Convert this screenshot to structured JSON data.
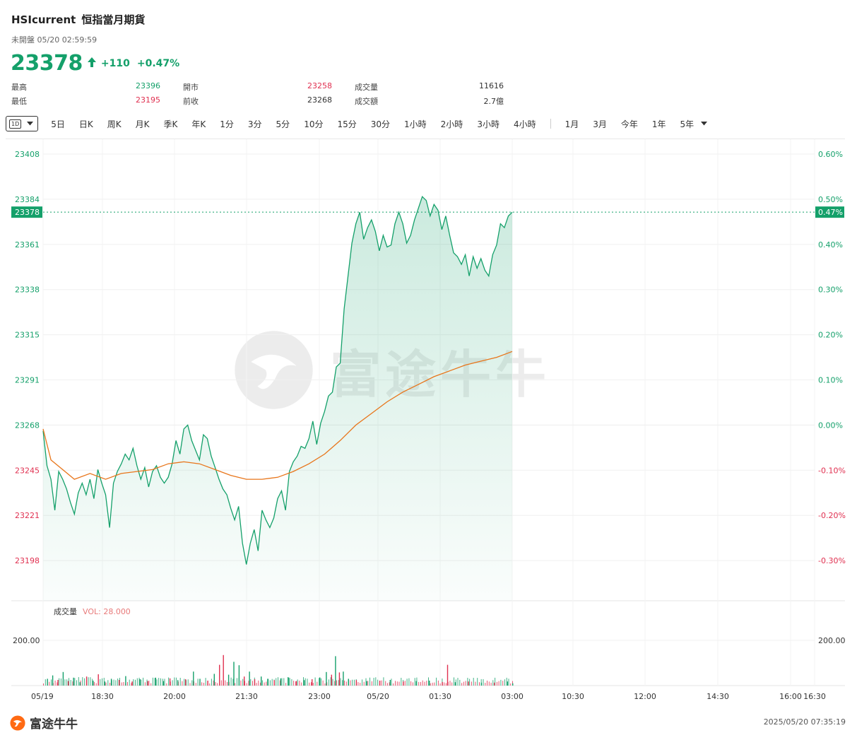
{
  "header": {
    "symbol": "HSIcurrent",
    "name": "恒指當月期貨",
    "status": "未開盤 05/20 02:59:59",
    "price": "23378",
    "change": "+110",
    "change_pct": "+0.47%"
  },
  "stats": [
    {
      "label": "最高",
      "value": "23396",
      "tone": "up"
    },
    {
      "label": "開市",
      "value": "23258",
      "tone": "dn"
    },
    {
      "label": "成交量",
      "value": "11616",
      "tone": "neu"
    },
    {
      "label": "最低",
      "value": "23195",
      "tone": "dn"
    },
    {
      "label": "前收",
      "value": "23268",
      "tone": "neu"
    },
    {
      "label": "成交額",
      "value": "2.7億",
      "tone": "neu"
    }
  ],
  "toolbar": {
    "selected": "1D",
    "items_a": [
      "5日",
      "日K",
      "周K",
      "月K",
      "季K",
      "年K",
      "1分",
      "3分",
      "5分",
      "10分",
      "15分",
      "30分",
      "1小時",
      "2小時",
      "3小時",
      "4小時"
    ],
    "items_b": [
      "1月",
      "3月",
      "今年",
      "1年",
      "5年"
    ]
  },
  "volume": {
    "title": "成交量",
    "indicator": "VOL: 28.000"
  },
  "footer": {
    "logo": "富途牛牛",
    "timestamp": "2025/05/20 07:35:19"
  },
  "watermark": "富途牛牛",
  "colors": {
    "up": "#14a06a",
    "down": "#e03050",
    "avg": "#e8751a"
  },
  "chart_data": {
    "type": "line",
    "prev_close": 23268,
    "current": 23378,
    "current_pct": "0.47%",
    "ylim": [
      23178,
      23408
    ],
    "y_ticks_left": [
      "23408",
      "23384",
      "23361",
      "23338",
      "23315",
      "23291",
      "23268",
      "23245",
      "23221",
      "23198"
    ],
    "y_ticks_right": [
      "0.60%",
      "0.50%",
      "0.40%",
      "0.30%",
      "0.20%",
      "0.10%",
      "0.00%",
      "-0.10%",
      "-0.20%",
      "-0.30%"
    ],
    "x_ticks": [
      "05/19",
      "18:30",
      "20:00",
      "21:30",
      "23:00",
      "05/20",
      "01:30",
      "03:00",
      "10:30",
      "12:00",
      "14:30",
      "16:00",
      "16:30"
    ],
    "price_series": [
      [
        0,
        23265
      ],
      [
        3,
        23247
      ],
      [
        6,
        23240
      ],
      [
        9,
        23224
      ],
      [
        12,
        23244
      ],
      [
        15,
        23240
      ],
      [
        18,
        23235
      ],
      [
        21,
        23228
      ],
      [
        24,
        23222
      ],
      [
        27,
        23233
      ],
      [
        30,
        23238
      ],
      [
        33,
        23232
      ],
      [
        36,
        23240
      ],
      [
        39,
        23230
      ],
      [
        42,
        23245
      ],
      [
        45,
        23238
      ],
      [
        48,
        23232
      ],
      [
        51,
        23215
      ],
      [
        54,
        23238
      ],
      [
        57,
        23244
      ],
      [
        60,
        23248
      ],
      [
        63,
        23253
      ],
      [
        66,
        23250
      ],
      [
        69,
        23256
      ],
      [
        72,
        23247
      ],
      [
        75,
        23240
      ],
      [
        78,
        23246
      ],
      [
        81,
        23236
      ],
      [
        84,
        23244
      ],
      [
        87,
        23247
      ],
      [
        90,
        23241
      ],
      [
        93,
        23238
      ],
      [
        96,
        23241
      ],
      [
        99,
        23248
      ],
      [
        102,
        23260
      ],
      [
        105,
        23253
      ],
      [
        108,
        23266
      ],
      [
        111,
        23268
      ],
      [
        114,
        23260
      ],
      [
        117,
        23255
      ],
      [
        120,
        23250
      ],
      [
        123,
        23263
      ],
      [
        126,
        23261
      ],
      [
        129,
        23252
      ],
      [
        132,
        23246
      ],
      [
        135,
        23240
      ],
      [
        138,
        23235
      ],
      [
        141,
        23232
      ],
      [
        144,
        23225
      ],
      [
        147,
        23219
      ],
      [
        150,
        23226
      ],
      [
        153,
        23207
      ],
      [
        156,
        23196
      ],
      [
        159,
        23207
      ],
      [
        162,
        23214
      ],
      [
        165,
        23203
      ],
      [
        168,
        23224
      ],
      [
        171,
        23219
      ],
      [
        174,
        23215
      ],
      [
        177,
        23220
      ],
      [
        180,
        23230
      ],
      [
        183,
        23234
      ],
      [
        186,
        23224
      ],
      [
        189,
        23244
      ],
      [
        192,
        23249
      ],
      [
        195,
        23252
      ],
      [
        198,
        23257
      ],
      [
        201,
        23256
      ],
      [
        204,
        23261
      ],
      [
        207,
        23270
      ],
      [
        210,
        23258
      ],
      [
        213,
        23269
      ],
      [
        216,
        23275
      ],
      [
        219,
        23283
      ],
      [
        222,
        23285
      ],
      [
        225,
        23298
      ],
      [
        228,
        23300
      ],
      [
        231,
        23328
      ],
      [
        234,
        23345
      ],
      [
        237,
        23362
      ],
      [
        240,
        23372
      ],
      [
        243,
        23378
      ],
      [
        246,
        23364
      ],
      [
        249,
        23370
      ],
      [
        252,
        23374
      ],
      [
        255,
        23368
      ],
      [
        258,
        23358
      ],
      [
        261,
        23366
      ],
      [
        264,
        23360
      ],
      [
        267,
        23361
      ],
      [
        270,
        23372
      ],
      [
        273,
        23378
      ],
      [
        276,
        23372
      ],
      [
        279,
        23362
      ],
      [
        282,
        23366
      ],
      [
        285,
        23374
      ],
      [
        288,
        23380
      ],
      [
        291,
        23386
      ],
      [
        294,
        23384
      ],
      [
        297,
        23376
      ],
      [
        300,
        23382
      ],
      [
        303,
        23379
      ],
      [
        306,
        23369
      ],
      [
        309,
        23376
      ],
      [
        312,
        23366
      ],
      [
        315,
        23357
      ],
      [
        318,
        23355
      ],
      [
        321,
        23351
      ],
      [
        324,
        23356
      ],
      [
        327,
        23345
      ],
      [
        330,
        23355
      ],
      [
        333,
        23349
      ],
      [
        336,
        23354
      ],
      [
        339,
        23348
      ],
      [
        342,
        23345
      ],
      [
        345,
        23356
      ],
      [
        348,
        23361
      ],
      [
        351,
        23372
      ],
      [
        354,
        23370
      ],
      [
        357,
        23376
      ],
      [
        360,
        23378
      ]
    ],
    "avg_series": [
      [
        0,
        23266
      ],
      [
        6,
        23250
      ],
      [
        15,
        23245
      ],
      [
        24,
        23240
      ],
      [
        36,
        23243
      ],
      [
        48,
        23240
      ],
      [
        60,
        23243
      ],
      [
        72,
        23244
      ],
      [
        84,
        23245
      ],
      [
        96,
        23248
      ],
      [
        108,
        23249
      ],
      [
        120,
        23248
      ],
      [
        132,
        23245
      ],
      [
        144,
        23242
      ],
      [
        156,
        23240
      ],
      [
        168,
        23240
      ],
      [
        180,
        23241
      ],
      [
        192,
        23244
      ],
      [
        204,
        23248
      ],
      [
        216,
        23253
      ],
      [
        228,
        23260
      ],
      [
        240,
        23268
      ],
      [
        252,
        23274
      ],
      [
        264,
        23280
      ],
      [
        276,
        23285
      ],
      [
        288,
        23289
      ],
      [
        300,
        23293
      ],
      [
        312,
        23296
      ],
      [
        324,
        23299
      ],
      [
        336,
        23301
      ],
      [
        348,
        23303
      ],
      [
        360,
        23306
      ]
    ],
    "volume_series": [
      [
        3,
        30
      ],
      [
        7,
        45
      ],
      [
        11,
        25
      ],
      [
        15,
        60
      ],
      [
        19,
        20
      ],
      [
        23,
        35
      ],
      [
        28,
        15
      ],
      [
        33,
        40
      ],
      [
        38,
        22
      ],
      [
        42,
        50
      ],
      [
        47,
        18
      ],
      [
        52,
        30
      ],
      [
        58,
        25
      ],
      [
        63,
        42
      ],
      [
        68,
        18
      ],
      [
        74,
        28
      ],
      [
        80,
        20
      ],
      [
        86,
        35
      ],
      [
        92,
        20
      ],
      [
        97,
        32
      ],
      [
        103,
        24
      ],
      [
        109,
        28
      ],
      [
        115,
        62
      ],
      [
        120,
        30
      ],
      [
        126,
        22
      ],
      [
        131,
        52
      ],
      [
        135,
        92
      ],
      [
        138,
        135
      ],
      [
        142,
        48
      ],
      [
        146,
        105
      ],
      [
        150,
        90
      ],
      [
        154,
        40
      ],
      [
        158,
        62
      ],
      [
        162,
        28
      ],
      [
        167,
        40
      ],
      [
        172,
        30
      ],
      [
        177,
        24
      ],
      [
        182,
        32
      ],
      [
        188,
        36
      ],
      [
        194,
        20
      ],
      [
        200,
        24
      ],
      [
        206,
        28
      ],
      [
        212,
        36
      ],
      [
        217,
        60
      ],
      [
        221,
        48
      ],
      [
        224,
        130
      ],
      [
        227,
        58
      ],
      [
        230,
        62
      ],
      [
        234,
        30
      ],
      [
        240,
        24
      ],
      [
        248,
        20
      ],
      [
        258,
        22
      ],
      [
        266,
        25
      ],
      [
        276,
        18
      ],
      [
        286,
        20
      ],
      [
        296,
        22
      ],
      [
        306,
        16
      ],
      [
        310,
        92
      ],
      [
        316,
        15
      ],
      [
        326,
        18
      ],
      [
        336,
        13
      ],
      [
        346,
        13
      ],
      [
        356,
        18
      ],
      [
        360,
        10
      ]
    ],
    "volume_colors_up": [
      1,
      1,
      0,
      1,
      0,
      1,
      1,
      0,
      1,
      0,
      1,
      1,
      0,
      1,
      0,
      1,
      0,
      1,
      1,
      0,
      1,
      0,
      1,
      1,
      0,
      1,
      0,
      0,
      1,
      1,
      1,
      0,
      1,
      0,
      1,
      1,
      0,
      1,
      1,
      0,
      1,
      0,
      1,
      1,
      0,
      1,
      0,
      1,
      1,
      0,
      1,
      0,
      1,
      0,
      1,
      1,
      0,
      0,
      1,
      0,
      1,
      0,
      1,
      1
    ],
    "volume_ylabel": "200.00"
  }
}
